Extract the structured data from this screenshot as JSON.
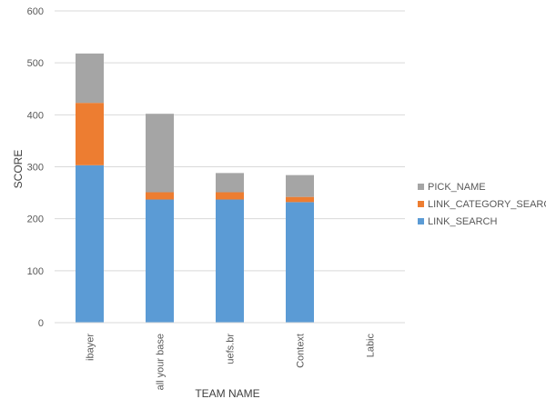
{
  "chart_data": {
    "type": "bar",
    "stacked": true,
    "categories": [
      "ibayer",
      "all your base",
      "uefs.br",
      "Context",
      "Labic"
    ],
    "series": [
      {
        "name": "LINK_SEARCH",
        "values": [
          303,
          237,
          237,
          232,
          0
        ],
        "color": "#5b9bd5"
      },
      {
        "name": "LINK_CATEGORY_SEARCH",
        "values": [
          120,
          14,
          14,
          10,
          0
        ],
        "color": "#ed7d31"
      },
      {
        "name": "PICK_NAME",
        "values": [
          95,
          151,
          37,
          42,
          0
        ],
        "color": "#a5a5a5"
      }
    ],
    "legend_order": [
      "PICK_NAME",
      "LINK_CATEGORY_SEARCH",
      "LINK_SEARCH"
    ],
    "xlabel": "TEAM NAME",
    "ylabel": "SCORE",
    "ylim": [
      0,
      600
    ],
    "yticks": [
      0,
      100,
      200,
      300,
      400,
      500,
      600
    ],
    "grid": true,
    "legend_position": "right",
    "gridline_color": "#d9d9d9"
  }
}
